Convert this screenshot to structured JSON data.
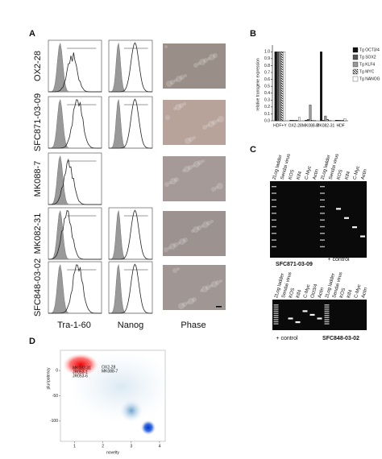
{
  "panel_a": {
    "label": "A",
    "rows": [
      "OX2-28",
      "SFC871-03-09",
      "MK088-7",
      "MK082-31",
      "SFC848-03-02"
    ],
    "columns": [
      "Tra-1-60",
      "Nanog",
      "Phase"
    ]
  },
  "panel_b": {
    "label": "B",
    "type": "bar",
    "y_label": "relative transgene expression",
    "categories": [
      "HDF+Y",
      "OX2-28",
      "MK088-7",
      "MK082-31",
      "HDF"
    ],
    "series": [
      {
        "name": "Tg OCT3/4",
        "color": "#111111",
        "values": [
          1.0,
          0.01,
          0.01,
          1.0,
          0.01
        ]
      },
      {
        "name": "Tg SOX2",
        "color": "#555555",
        "values": [
          1.0,
          0.01,
          0.02,
          0.01,
          0.01
        ]
      },
      {
        "name": "Tg KLF4",
        "color": "#999999",
        "values": [
          1.0,
          0.01,
          0.23,
          0.07,
          0.01
        ]
      },
      {
        "name": "Tg MYC",
        "color": "hatch",
        "values": [
          1.0,
          0.01,
          0.01,
          0.02,
          0.01
        ]
      },
      {
        "name": "Tg NANOG",
        "color": "#ffffff",
        "values": [
          1.0,
          0.05,
          0.01,
          0.01,
          0.03
        ]
      }
    ],
    "ylim": [
      0,
      1.05
    ],
    "yticks": [
      {
        "value": 0,
        "label": "0.0"
      },
      {
        "value": 0.1,
        "label": "0.1"
      },
      {
        "value": 0.2,
        "label": "0.2"
      },
      {
        "value": 0.3,
        "label": "0.3"
      },
      {
        "value": 0.4,
        "label": "0.4"
      },
      {
        "value": 0.5,
        "label": "0.5"
      },
      {
        "value": 0.6,
        "label": "0.6"
      },
      {
        "value": 0.7,
        "label": "0.7"
      },
      {
        "value": 0.8,
        "label": "0.8"
      },
      {
        "value": 0.9,
        "label": "0.9"
      },
      {
        "value": 1.0,
        "label": "1.0"
      }
    ]
  },
  "panel_c": {
    "label": "C",
    "gels": [
      {
        "lanes": [
          "2Log ladder",
          "Sendai virus",
          "KOS",
          "Klf4",
          "C-Myc",
          "Actin",
          "2Log ladder",
          "Sendai virus",
          "KOS",
          "Klf4",
          "C-Myc",
          "Actin"
        ],
        "captions": [
          "SFC871-03-09",
          "+ control"
        ]
      },
      {
        "lanes": [
          "2Log ladder",
          "Sendai virus",
          "KOS",
          "Klf4",
          "C-Myc",
          "Oct3/4",
          "Actin",
          "2Log ladder",
          "Sendai virus",
          "KOS",
          "Klf4",
          "C-Myc",
          "Actin"
        ],
        "captions": [
          "+ control",
          "SFC848-03-02"
        ]
      }
    ]
  },
  "panel_d": {
    "label": "D",
    "x_label": "novelty",
    "y_label": "pluripotency",
    "xlim": [
      0.5,
      4.2
    ],
    "xticks": [
      1,
      2,
      3,
      4
    ],
    "ylim": [
      -140,
      40
    ],
    "yticks": [
      0,
      -50,
      -100
    ],
    "point_labels": [
      "MK082-31",
      "JR053-1",
      "JR053-6",
      "OX2-28",
      "MK088-7"
    ]
  }
}
